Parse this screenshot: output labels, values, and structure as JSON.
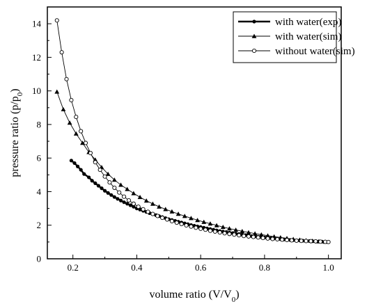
{
  "chart_data": {
    "type": "line",
    "title": "",
    "xlabel_main": "volume ratio  (V/V",
    "xlabel_sub": "0",
    "xlabel_close": ")",
    "ylabel_main": "pressure ratio (p/p",
    "ylabel_sub": "0",
    "ylabel_close": ")",
    "xlim": [
      0.12,
      1.04
    ],
    "ylim": [
      0,
      15
    ],
    "xticks": [
      "0.2",
      "0.4",
      "0.6",
      "0.8",
      "1.0"
    ],
    "yticks": [
      "0",
      "2",
      "4",
      "6",
      "8",
      "10",
      "12",
      "14"
    ],
    "legend_position": "top-right",
    "series": [
      {
        "name": "with water(exp)",
        "marker": "filled-circle",
        "line_width": "thick",
        "x": [
          0.195,
          0.205,
          0.215,
          0.225,
          0.235,
          0.25,
          0.26,
          0.27,
          0.28,
          0.29,
          0.3,
          0.31,
          0.32,
          0.33,
          0.34,
          0.35,
          0.36,
          0.37,
          0.38,
          0.39,
          0.4,
          0.41,
          0.42,
          0.43,
          0.44,
          0.45,
          0.46,
          0.47,
          0.48,
          0.49,
          0.5,
          0.51,
          0.52,
          0.53,
          0.54,
          0.55,
          0.56,
          0.57,
          0.58,
          0.59,
          0.6,
          0.61,
          0.62,
          0.63,
          0.64,
          0.65,
          0.66,
          0.67,
          0.68,
          0.69,
          0.7,
          0.71,
          0.72,
          0.73,
          0.74,
          0.75,
          0.76,
          0.77,
          0.78,
          0.79,
          0.8,
          0.81,
          0.82,
          0.83,
          0.84,
          0.85,
          0.86,
          0.87,
          0.88,
          0.89,
          0.9,
          0.91,
          0.92,
          0.93,
          0.94,
          0.95,
          0.96,
          0.97,
          0.98,
          0.99,
          1.0
        ],
        "y": [
          5.85,
          5.7,
          5.5,
          5.3,
          5.05,
          4.85,
          4.65,
          4.5,
          4.35,
          4.2,
          4.05,
          3.92,
          3.8,
          3.68,
          3.57,
          3.47,
          3.37,
          3.28,
          3.19,
          3.1,
          3.0,
          2.93,
          2.86,
          2.79,
          2.72,
          2.66,
          2.6,
          2.54,
          2.48,
          2.42,
          2.36,
          2.31,
          2.26,
          2.21,
          2.16,
          2.11,
          2.06,
          2.01,
          1.97,
          1.93,
          1.89,
          1.85,
          1.81,
          1.77,
          1.73,
          1.69,
          1.65,
          1.62,
          1.59,
          1.56,
          1.53,
          1.5,
          1.47,
          1.44,
          1.41,
          1.38,
          1.35,
          1.33,
          1.31,
          1.29,
          1.27,
          1.25,
          1.23,
          1.21,
          1.19,
          1.17,
          1.15,
          1.13,
          1.12,
          1.11,
          1.1,
          1.09,
          1.08,
          1.07,
          1.06,
          1.05,
          1.04,
          1.03,
          1.02,
          1.01,
          1.0
        ]
      },
      {
        "name": "with water(sim)",
        "marker": "filled-triangle",
        "line_width": "thin",
        "x": [
          0.15,
          0.17,
          0.19,
          0.21,
          0.23,
          0.25,
          0.27,
          0.29,
          0.31,
          0.33,
          0.35,
          0.37,
          0.39,
          0.41,
          0.43,
          0.45,
          0.47,
          0.49,
          0.51,
          0.53,
          0.55,
          0.57,
          0.59,
          0.61,
          0.63,
          0.65,
          0.67,
          0.69,
          0.71,
          0.73,
          0.75,
          0.77,
          0.79,
          0.81,
          0.83,
          0.85,
          0.87,
          0.89,
          0.91,
          0.93,
          0.95,
          0.97,
          0.99
        ],
        "y": [
          9.95,
          8.9,
          8.1,
          7.45,
          6.9,
          6.35,
          5.9,
          5.45,
          5.05,
          4.7,
          4.4,
          4.15,
          3.9,
          3.67,
          3.46,
          3.27,
          3.1,
          2.95,
          2.81,
          2.67,
          2.54,
          2.42,
          2.3,
          2.19,
          2.09,
          1.99,
          1.89,
          1.8,
          1.72,
          1.64,
          1.57,
          1.5,
          1.44,
          1.38,
          1.32,
          1.27,
          1.22,
          1.17,
          1.13,
          1.09,
          1.06,
          1.03,
          1.01
        ]
      },
      {
        "name": "without water(sim)",
        "marker": "open-circle",
        "line_width": "thin",
        "x": [
          0.15,
          0.165,
          0.18,
          0.195,
          0.21,
          0.225,
          0.24,
          0.255,
          0.27,
          0.285,
          0.3,
          0.315,
          0.33,
          0.345,
          0.36,
          0.375,
          0.39,
          0.405,
          0.42,
          0.435,
          0.45,
          0.465,
          0.48,
          0.495,
          0.51,
          0.525,
          0.54,
          0.555,
          0.57,
          0.585,
          0.6,
          0.615,
          0.63,
          0.645,
          0.66,
          0.675,
          0.69,
          0.705,
          0.72,
          0.735,
          0.75,
          0.765,
          0.78,
          0.795,
          0.81,
          0.825,
          0.84,
          0.855,
          0.87,
          0.885,
          0.9,
          0.915,
          0.93,
          0.945,
          0.96,
          0.975,
          0.99,
          1.0
        ],
        "y": [
          14.2,
          12.3,
          10.7,
          9.45,
          8.45,
          7.6,
          6.9,
          6.3,
          5.75,
          5.3,
          4.9,
          4.55,
          4.23,
          3.95,
          3.7,
          3.48,
          3.28,
          3.1,
          2.95,
          2.8,
          2.67,
          2.55,
          2.44,
          2.34,
          2.24,
          2.15,
          2.07,
          1.99,
          1.92,
          1.85,
          1.79,
          1.73,
          1.67,
          1.62,
          1.57,
          1.52,
          1.48,
          1.44,
          1.4,
          1.36,
          1.33,
          1.3,
          1.27,
          1.24,
          1.21,
          1.18,
          1.16,
          1.14,
          1.12,
          1.1,
          1.08,
          1.07,
          1.06,
          1.05,
          1.04,
          1.02,
          1.01,
          1.0
        ]
      }
    ]
  }
}
